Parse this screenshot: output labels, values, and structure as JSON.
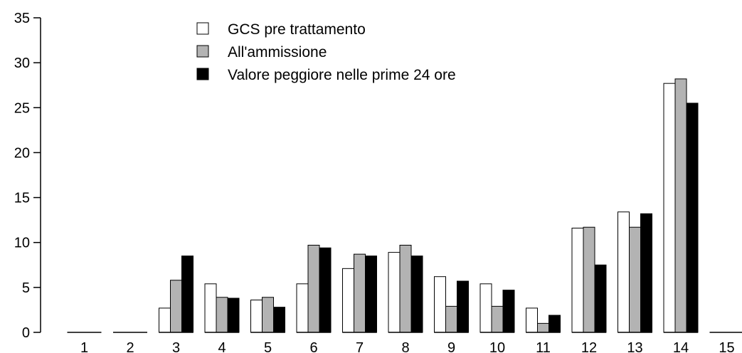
{
  "chart_data": {
    "type": "bar",
    "title": "",
    "xlabel": "",
    "ylabel": "",
    "ylim": [
      0,
      35
    ],
    "yticks": [
      0,
      5,
      10,
      15,
      20,
      25,
      30,
      35
    ],
    "grid": false,
    "legend_position": "top-center",
    "categories": [
      "1",
      "2",
      "3",
      "4",
      "5",
      "6",
      "7",
      "8",
      "9",
      "10",
      "11",
      "12",
      "13",
      "14",
      "15"
    ],
    "series": [
      {
        "name": "GCS pre trattamento",
        "color": "#ffffff",
        "values": [
          0,
          0,
          2.7,
          5.4,
          3.6,
          5.4,
          7.1,
          8.9,
          6.2,
          5.4,
          2.7,
          11.6,
          13.4,
          27.7,
          0
        ]
      },
      {
        "name": "All'ammissione",
        "color": "#b3b3b3",
        "values": [
          0,
          0,
          5.8,
          3.9,
          3.9,
          9.7,
          8.7,
          9.7,
          2.9,
          2.9,
          1.0,
          11.7,
          11.7,
          28.2,
          0
        ]
      },
      {
        "name": "Valore peggiore nelle prime 24 ore",
        "color": "#000000",
        "values": [
          0,
          0,
          8.5,
          3.8,
          2.8,
          9.4,
          8.5,
          8.5,
          5.7,
          4.7,
          1.9,
          7.5,
          13.2,
          25.5,
          0
        ]
      }
    ]
  }
}
